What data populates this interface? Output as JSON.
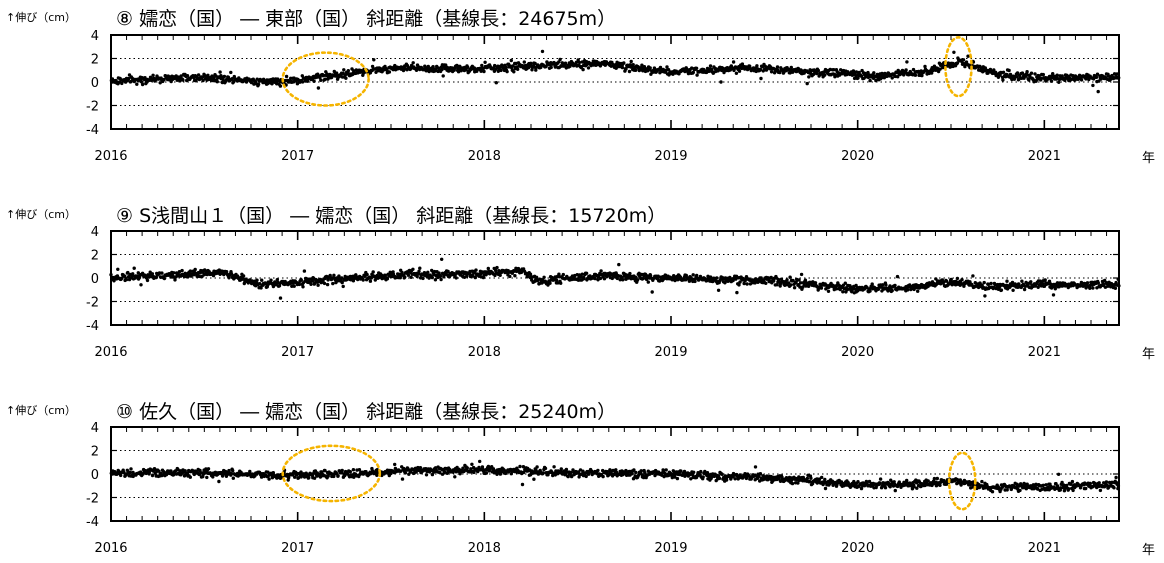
{
  "x_unit_label": "年",
  "chart_data": [
    {
      "type": "scatter",
      "title": "⑧ 嬬恋（国） ― 東部（国） 斜距離（基線長：24675m）",
      "ylabel": "↑伸び（cm）",
      "xlim": [
        2016.0,
        2021.4
      ],
      "ylim": [
        -4,
        4
      ],
      "yticks": [
        "4",
        "2",
        "0",
        "-2",
        "-4"
      ],
      "xticks": [
        "2016",
        "2017",
        "2018",
        "2019",
        "2020",
        "2021"
      ],
      "grid": "dotted horizontal lines at y = 2, 0, -2",
      "marker_color": "#000000",
      "highlight_color": "#f5b400",
      "trend": {
        "x": [
          2016.0,
          2016.5,
          2016.9,
          2017.2,
          2017.5,
          2018.0,
          2018.3,
          2018.6,
          2019.0,
          2019.5,
          2019.8,
          2020.1,
          2020.4,
          2020.55,
          2020.75,
          2021.0,
          2021.4
        ],
        "y": [
          0.1,
          0.4,
          0.0,
          0.6,
          1.2,
          1.1,
          1.4,
          1.6,
          0.9,
          1.2,
          0.8,
          0.5,
          1.0,
          1.8,
          0.6,
          0.3,
          0.4
        ]
      },
      "highlights": [
        {
          "x": [
            2016.92,
            2017.38
          ],
          "y": [
            -2.0,
            2.5
          ]
        },
        {
          "x": [
            2020.47,
            2020.61
          ],
          "y": [
            -1.2,
            3.8
          ]
        }
      ]
    },
    {
      "type": "scatter",
      "title": "⑨ S浅間山１（国） ― 嬬恋（国） 斜距離（基線長：15720m）",
      "ylabel": "↑伸び（cm）",
      "xlim": [
        2016.0,
        2021.4
      ],
      "ylim": [
        -4,
        4
      ],
      "yticks": [
        "4",
        "2",
        "0",
        "-2",
        "-4"
      ],
      "xticks": [
        "2016",
        "2017",
        "2018",
        "2019",
        "2020",
        "2021"
      ],
      "grid": "dotted horizontal lines at y = 2, 0, -2",
      "marker_color": "#000000",
      "trend": {
        "x": [
          2016.0,
          2016.3,
          2016.6,
          2016.8,
          2017.2,
          2017.6,
          2018.0,
          2018.2,
          2018.3,
          2018.6,
          2019.0,
          2019.5,
          2020.0,
          2020.3,
          2020.5,
          2020.7,
          2021.0,
          2021.4
        ],
        "y": [
          0.0,
          0.2,
          0.5,
          -0.6,
          -0.1,
          0.3,
          0.4,
          0.6,
          -0.3,
          0.2,
          0.0,
          -0.2,
          -0.9,
          -0.8,
          -0.3,
          -0.8,
          -0.6,
          -0.6
        ]
      },
      "highlights": []
    },
    {
      "type": "scatter",
      "title": "⑩ 佐久（国） ― 嬬恋（国） 斜距離（基線長：25240m）",
      "ylabel": "↑伸び（cm）",
      "xlim": [
        2016.0,
        2021.4
      ],
      "ylim": [
        -4,
        4
      ],
      "yticks": [
        "4",
        "2",
        "0",
        "-2",
        "-4"
      ],
      "xticks": [
        "2016",
        "2017",
        "2018",
        "2019",
        "2020",
        "2021"
      ],
      "grid": "dotted horizontal lines at y = 2, 0, -2",
      "marker_color": "#000000",
      "highlight_color": "#f5b400",
      "trend": {
        "x": [
          2016.0,
          2016.5,
          2016.9,
          2017.3,
          2017.6,
          2018.0,
          2018.5,
          2019.0,
          2019.5,
          2020.0,
          2020.3,
          2020.5,
          2020.7,
          2021.0,
          2021.4
        ],
        "y": [
          0.1,
          0.1,
          -0.1,
          0.0,
          0.3,
          0.3,
          0.1,
          0.0,
          -0.3,
          -0.9,
          -0.9,
          -0.6,
          -1.1,
          -1.1,
          -0.9
        ]
      },
      "highlights": [
        {
          "x": [
            2016.92,
            2017.44
          ],
          "y": [
            -2.3,
            2.4
          ]
        },
        {
          "x": [
            2020.49,
            2020.63
          ],
          "y": [
            -3.0,
            1.8
          ]
        }
      ]
    }
  ]
}
